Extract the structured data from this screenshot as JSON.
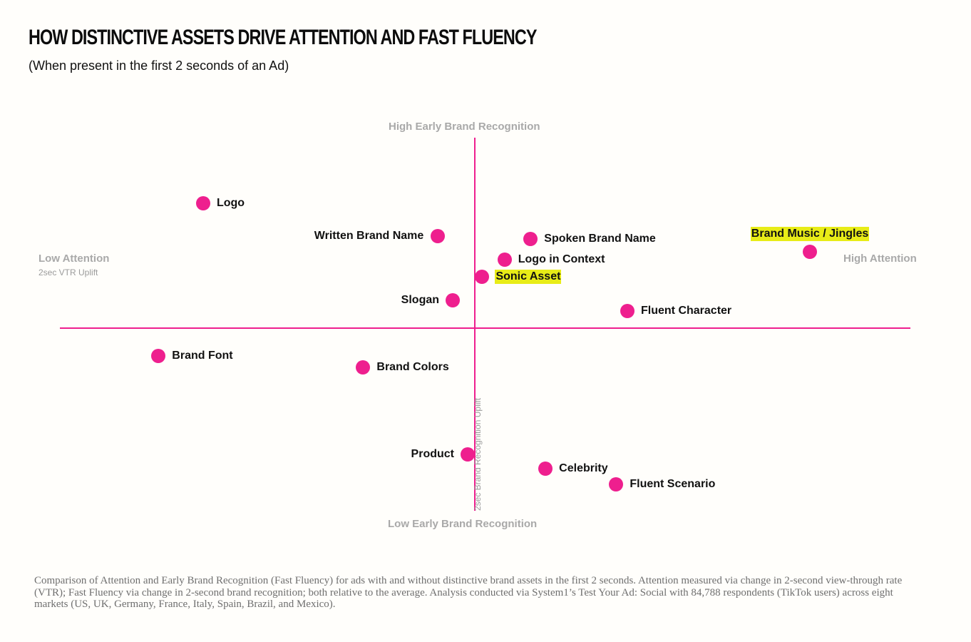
{
  "title": "HOW DISTINCTIVE ASSETS DRIVE ATTENTION AND FAST FLUENCY",
  "subtitle": "(When present in the first 2 seconds of an Ad)",
  "footnote": "Comparison of Attention and Early Brand Recognition (Fast Fluency) for ads with and without distinctive brand assets in the first 2 seconds. Attention measured via change in 2-second view-through rate (VTR); Fast Fluency via change in 2-second brand recognition; both relative to the average. Analysis conducted via System1’s Test Your Ad: Social with 84,788 respondents (TikTok users) across eight markets (US, UK, Germany, France, Italy, Spain, Brazil, and Mexico).",
  "colors": {
    "accent": "#ee1f8e",
    "highlight": "#e8ec17",
    "axis_text": "#a9a9a9"
  },
  "chart_data": {
    "type": "scatter",
    "x_axis": {
      "low_label": "Low Attention",
      "high_label": "High Attention",
      "metric": "2sec VTR Uplift"
    },
    "y_axis": {
      "high_label": "High Early Brand Recognition",
      "low_label": "Low Early Brand Recognition",
      "metric": "2sec Brand Recognition Uplift"
    },
    "xlim": [
      -100,
      100
    ],
    "ylim": [
      -100,
      100
    ],
    "points": [
      {
        "label": "Logo",
        "x": -73,
        "y": 80,
        "label_side": "right",
        "highlight": false
      },
      {
        "label": "Written Brand Name",
        "x": -10,
        "y": 59,
        "label_side": "left",
        "highlight": false
      },
      {
        "label": "Spoken Brand Name",
        "x": 15,
        "y": 57,
        "label_side": "right",
        "highlight": false
      },
      {
        "label": "Logo in Context",
        "x": 8,
        "y": 44,
        "label_side": "right",
        "highlight": false
      },
      {
        "label": "Sonic Asset",
        "x": 2,
        "y": 33,
        "label_side": "right",
        "highlight": true
      },
      {
        "label": "Brand Music / Jingles",
        "x": 90,
        "y": 49,
        "label_side": "above",
        "highlight": true
      },
      {
        "label": "Slogan",
        "x": -6,
        "y": 18,
        "label_side": "left",
        "highlight": false
      },
      {
        "label": "Fluent Character",
        "x": 41,
        "y": 11,
        "label_side": "right",
        "highlight": false
      },
      {
        "label": "Brand Font",
        "x": -85,
        "y": -18,
        "label_side": "right",
        "highlight": false
      },
      {
        "label": "Brand Colors",
        "x": -30,
        "y": -25,
        "label_side": "right",
        "highlight": false
      },
      {
        "label": "Product",
        "x": -2,
        "y": -81,
        "label_side": "left",
        "highlight": false
      },
      {
        "label": "Celebrity",
        "x": 19,
        "y": -90,
        "label_side": "right",
        "highlight": false
      },
      {
        "label": "Fluent Scenario",
        "x": 38,
        "y": -100,
        "label_side": "right",
        "highlight": false
      }
    ]
  }
}
